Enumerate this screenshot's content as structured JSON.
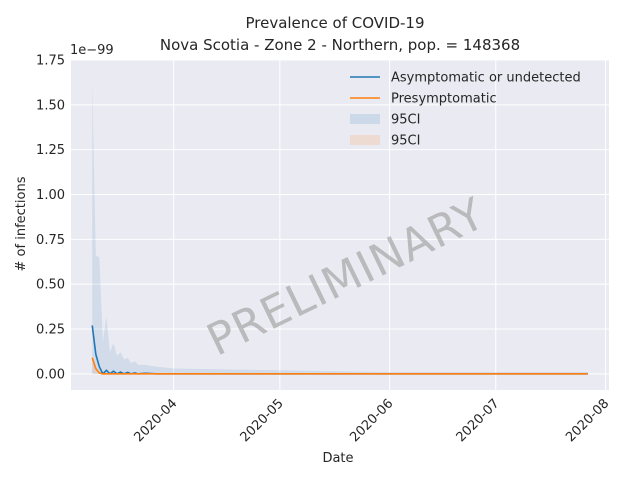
{
  "chart_data": {
    "type": "line",
    "title_line1": "Prevalence of COVID-19",
    "title_line2": "Nova Scotia - Zone 2 - Northern, pop. = 148368",
    "xlabel": "Date",
    "ylabel": "# of infections",
    "y_offset_label": "1e−99",
    "y_scale_exponent": -99,
    "ylim": [
      -0.09,
      1.75
    ],
    "yticks": [
      0.0,
      0.25,
      0.5,
      0.75,
      1.0,
      1.25,
      1.5,
      1.75
    ],
    "ytick_labels": [
      "0.00",
      "0.25",
      "0.50",
      "0.75",
      "1.00",
      "1.25",
      "1.50",
      "1.75"
    ],
    "xlim": [
      "2020-03-03",
      "2020-08-02"
    ],
    "xticks": [
      "2020-04-01",
      "2020-05-01",
      "2020-06-01",
      "2020-07-01",
      "2020-08-01"
    ],
    "xtick_labels": [
      "2020-04",
      "2020-05",
      "2020-06",
      "2020-07",
      "2020-08"
    ],
    "grid": true,
    "legend_position": "top-right",
    "watermark": "PRELIMINARY",
    "legend": [
      {
        "label": "Asymptomatic or undetected",
        "kind": "line",
        "color": "#1f77b4"
      },
      {
        "label": "Presymptomatic",
        "kind": "line",
        "color": "#ff7f0e"
      },
      {
        "label": "95CI",
        "kind": "band",
        "color": "#1f77b4"
      },
      {
        "label": "95CI",
        "kind": "band",
        "color": "#ff7f0e"
      }
    ],
    "series": [
      {
        "name": "Asymptomatic or undetected",
        "color": "#1f77b4",
        "x": [
          "2020-03-09",
          "2020-03-10",
          "2020-03-11",
          "2020-03-12",
          "2020-03-13",
          "2020-03-14",
          "2020-03-15",
          "2020-03-16",
          "2020-03-17",
          "2020-03-18",
          "2020-03-19",
          "2020-03-20",
          "2020-03-21",
          "2020-03-22",
          "2020-03-24",
          "2020-03-27",
          "2020-04-01",
          "2020-05-01",
          "2020-06-01",
          "2020-07-01",
          "2020-07-27"
        ],
        "y": [
          0.27,
          0.11,
          0.04,
          0.0,
          0.02,
          0.0,
          0.015,
          0.0,
          0.01,
          0.0,
          0.008,
          0.0,
          0.005,
          0.0,
          0.003,
          0.0,
          0.0,
          0.0,
          0.0,
          0.0,
          0.0
        ],
        "ci_upper": [
          1.62,
          0.66,
          0.65,
          0.18,
          0.32,
          0.12,
          0.17,
          0.1,
          0.12,
          0.08,
          0.09,
          0.06,
          0.07,
          0.05,
          0.05,
          0.04,
          0.03,
          0.02,
          0.01,
          0.01,
          0.01
        ],
        "ci_lower": [
          0.0,
          0.0,
          0.0,
          0.0,
          0.0,
          0.0,
          0.0,
          0.0,
          0.0,
          0.0,
          0.0,
          0.0,
          0.0,
          0.0,
          0.0,
          0.0,
          0.0,
          0.0,
          0.0,
          0.0,
          0.0
        ]
      },
      {
        "name": "Presymptomatic",
        "color": "#ff7f0e",
        "x": [
          "2020-03-09",
          "2020-03-10",
          "2020-03-11",
          "2020-03-12",
          "2020-03-14",
          "2020-04-01",
          "2020-05-01",
          "2020-06-01",
          "2020-07-01",
          "2020-07-27"
        ],
        "y": [
          0.09,
          0.03,
          0.005,
          0.0,
          0.0,
          0.0,
          0.0,
          0.0,
          0.0,
          0.0
        ],
        "ci_upper": [
          0.1,
          0.04,
          0.01,
          0.005,
          0.0,
          0.0,
          0.0,
          0.0,
          0.0,
          0.0
        ],
        "ci_lower": [
          0.0,
          0.0,
          0.0,
          0.0,
          0.0,
          0.0,
          0.0,
          0.0,
          0.0,
          0.0
        ]
      }
    ]
  }
}
